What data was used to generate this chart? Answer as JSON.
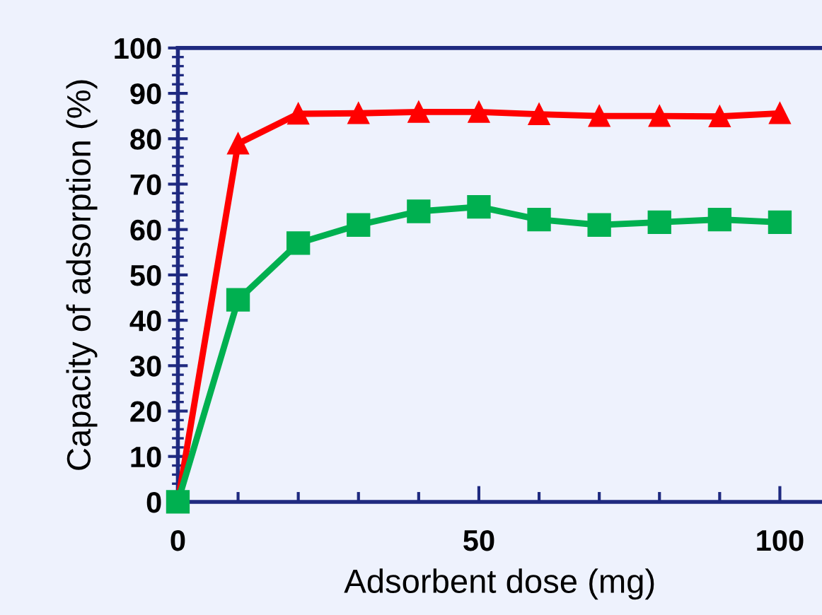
{
  "chart_data": {
    "type": "line",
    "xlabel": "Adsorbent dose (mg)",
    "ylabel": "Capacity of adsorption (%)",
    "x": [
      0,
      10,
      20,
      30,
      40,
      50,
      60,
      70,
      80,
      90,
      100
    ],
    "series": [
      {
        "color": "#ff0000",
        "marker": "triangle",
        "values": [
          0,
          78.9,
          85.5,
          85.6,
          85.9,
          85.9,
          85.4,
          85.0,
          85.0,
          84.9,
          85.6
        ]
      },
      {
        "color": "#00b050",
        "marker": "square",
        "values": [
          0,
          44.5,
          57.0,
          61.0,
          64.0,
          65.0,
          62.2,
          61.0,
          61.6,
          62.2,
          61.6
        ]
      }
    ],
    "xlim": [
      0,
      107
    ],
    "xticks": [
      0,
      50,
      100
    ],
    "ylim": [
      0,
      100
    ],
    "yticks": [
      0,
      10,
      20,
      30,
      40,
      50,
      60,
      70,
      80,
      90,
      100
    ],
    "grid": false,
    "legend": false
  }
}
